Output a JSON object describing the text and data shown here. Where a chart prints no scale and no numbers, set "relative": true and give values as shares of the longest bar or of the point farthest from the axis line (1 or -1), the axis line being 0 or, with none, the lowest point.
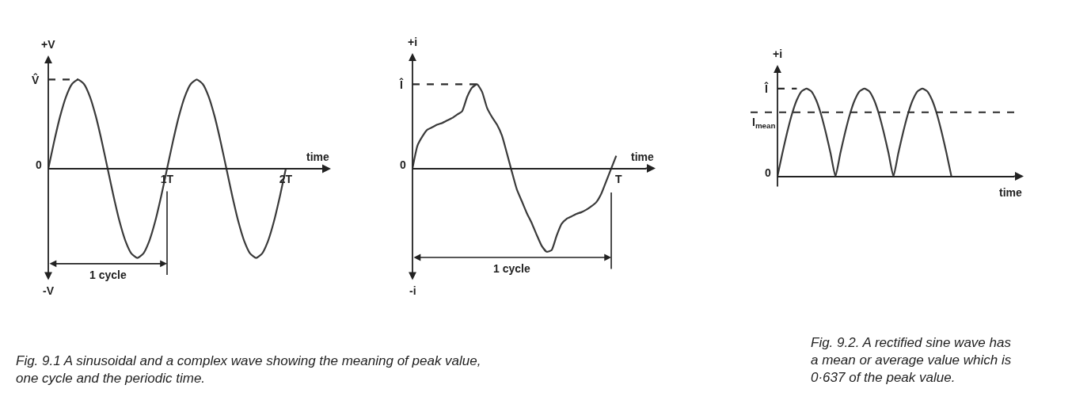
{
  "chart_data": [
    {
      "type": "line",
      "relative": true,
      "ylabel": "+V",
      "xlabel": "time",
      "xlim": [
        0,
        2.3
      ],
      "xticks": [
        {
          "value": 1,
          "label": "1T"
        },
        {
          "value": 2,
          "label": "2T"
        }
      ],
      "series": [
        {
          "color": "#3a3a3a",
          "x": [
            0,
            0.05,
            0.1,
            0.15,
            0.2,
            0.25,
            0.3,
            0.35,
            0.4,
            0.45,
            0.5,
            0.55,
            0.6,
            0.65,
            0.7,
            0.75,
            0.8,
            0.85,
            0.9,
            0.95,
            1,
            1.05,
            1.1,
            1.15,
            1.2,
            1.25,
            1.3,
            1.35,
            1.4,
            1.45,
            1.5,
            1.55,
            1.6,
            1.65,
            1.7,
            1.75,
            1.8,
            1.85,
            1.9,
            1.95,
            2
          ],
          "values": [
            0,
            0.31,
            0.59,
            0.81,
            0.95,
            1,
            0.95,
            0.81,
            0.59,
            0.31,
            0,
            -0.31,
            -0.59,
            -0.81,
            -0.95,
            -1,
            -0.95,
            -0.81,
            -0.59,
            -0.31,
            0,
            0.31,
            0.59,
            0.81,
            0.95,
            1,
            0.95,
            0.81,
            0.59,
            0.31,
            0,
            -0.31,
            -0.59,
            -0.81,
            -0.95,
            -1,
            -0.95,
            -0.81,
            -0.59,
            -0.31,
            0
          ]
        },
        {
          "color": "#2a2a2a",
          "line_style": "dashed",
          "x": [
            0,
            0.25
          ],
          "values": [
            1,
            1
          ]
        }
      ],
      "ref_lines": [
        {
          "axis": "x",
          "value": 1
        }
      ],
      "annotations": [
        "V̂",
        "0",
        "1 cycle",
        "-V",
        "Fig. 9.1 A sinusoidal and a complex wave showing the meaning of peak value, one cycle and the periodic time."
      ]
    },
    {
      "type": "line",
      "relative": true,
      "ylabel": "+i",
      "xlabel": "time",
      "categories": [
        null,
        null,
        null,
        null,
        null,
        null,
        null,
        null,
        null,
        null,
        null,
        null,
        null,
        null,
        null,
        null,
        null,
        null,
        null,
        null,
        null,
        null,
        null,
        null,
        null,
        null,
        null,
        null,
        null,
        null,
        null,
        null,
        null,
        null,
        null,
        null,
        null,
        null,
        null,
        null,
        null,
        null,
        null,
        null,
        null,
        null,
        null,
        null
      ],
      "series": [
        {
          "color": "#3a3a3a",
          "values": [
            0,
            0.27,
            0.38,
            0.46,
            0.49,
            0.52,
            0.54,
            0.57,
            0.6,
            0.64,
            0.68,
            0.85,
            0.96,
            1,
            0.91,
            0.72,
            0.61,
            0.52,
            0.39,
            0.18,
            -0.04,
            -0.25,
            -0.39,
            -0.53,
            -0.65,
            -0.79,
            -0.92,
            -0.99,
            -0.97,
            -0.8,
            -0.66,
            -0.6,
            -0.57,
            -0.54,
            -0.52,
            -0.49,
            -0.45,
            -0.4,
            -0.3,
            -0.15,
            0,
            0.15,
            null,
            null,
            null,
            null,
            null,
            null
          ]
        },
        {
          "color": "#2a2a2a",
          "line_style": "dashed",
          "values": [
            1,
            1,
            1,
            1,
            1,
            1,
            1,
            1,
            1,
            1,
            1,
            1,
            1,
            1,
            null,
            null,
            null,
            null,
            null,
            null,
            null,
            null,
            null,
            null,
            null,
            null,
            null,
            null,
            null,
            null,
            null,
            null,
            null,
            null,
            null,
            null,
            null,
            null,
            null,
            null,
            null,
            null,
            null,
            null,
            null,
            null,
            null,
            null
          ]
        }
      ],
      "annotations": [
        "Î",
        "0",
        "T",
        "1 cycle",
        "-i"
      ]
    },
    {
      "type": "line",
      "relative": true,
      "ylabel": "+i",
      "xlabel": "time",
      "categories": [
        null,
        null,
        null,
        null,
        null,
        null,
        null,
        null,
        null,
        null,
        null,
        null,
        null,
        null,
        null,
        null,
        null,
        null,
        null,
        null,
        null,
        null,
        null,
        null,
        null,
        null,
        null,
        null,
        null,
        null,
        null,
        null,
        null,
        null,
        null,
        null,
        null,
        null,
        null,
        null,
        null,
        null,
        null,
        null,
        null,
        null,
        null,
        null,
        null,
        null
      ],
      "series": [
        {
          "color": "#3a3a3a",
          "values": [
            0,
            0.26,
            0.5,
            0.71,
            0.87,
            0.97,
            1,
            0.97,
            0.87,
            0.71,
            0.5,
            0.26,
            0,
            0.26,
            0.5,
            0.71,
            0.87,
            0.97,
            1,
            0.97,
            0.87,
            0.71,
            0.5,
            0.26,
            0,
            0.26,
            0.5,
            0.71,
            0.87,
            0.97,
            1,
            0.97,
            0.87,
            0.71,
            0.5,
            0.26,
            0,
            null,
            null,
            null,
            null,
            null,
            null,
            null,
            null,
            null,
            null,
            null,
            null,
            null
          ]
        },
        {
          "color": "#2a2a2a",
          "line_style": "dashed",
          "values": [
            1,
            1,
            1,
            1,
            1,
            null,
            null,
            null,
            null,
            null,
            null,
            null,
            null,
            null,
            null,
            null,
            null,
            null,
            null,
            null,
            null,
            null,
            null,
            null,
            null,
            null,
            null,
            null,
            null,
            null,
            null,
            null,
            null,
            null,
            null,
            null,
            null,
            null,
            null,
            null,
            null,
            null,
            null,
            null,
            null,
            null,
            null,
            null,
            null,
            null
          ]
        }
      ],
      "ref_lines": [
        {
          "axis": "y",
          "value": 0.73,
          "label": "I$_{mean}$",
          "line_style": "dashed",
          "color": "#2a2a2a"
        }
      ],
      "annotations": [
        "Î",
        "0",
        "Fig. 9.2. A rectified sine wave has a mean or average value which is 0·637 of the peak value."
      ]
    }
  ]
}
